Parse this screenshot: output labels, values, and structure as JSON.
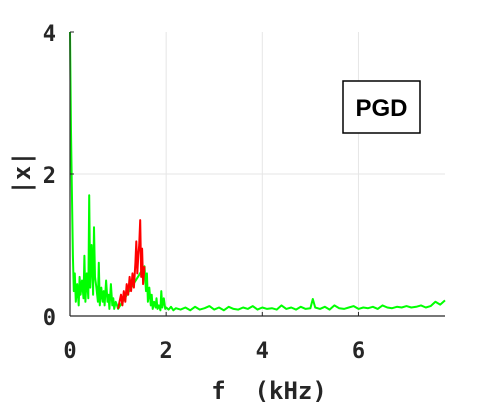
{
  "chart_data": {
    "type": "line",
    "title": "",
    "xlabel": "f  (kHz)",
    "ylabel": "|x|",
    "xlim": [
      0,
      7.8
    ],
    "ylim": [
      0,
      4
    ],
    "xticks": [
      0,
      2,
      4,
      6
    ],
    "yticks": [
      0,
      2,
      4
    ],
    "xtick_labels": [
      "0",
      "2",
      "4",
      "6"
    ],
    "ytick_labels": [
      "0",
      "2",
      "4"
    ],
    "grid": true,
    "annotation": "PGD",
    "annotation_placement": "top-right",
    "colors": {
      "spectrum": "#00ff00",
      "highlight": "#ff0000",
      "axis": "#262626",
      "grid": "#e6e6e6"
    },
    "series": [
      {
        "color": "#00ff00",
        "x": [
          0.0,
          0.02,
          0.04,
          0.06,
          0.08,
          0.1,
          0.12,
          0.15,
          0.18,
          0.2,
          0.22,
          0.25,
          0.28,
          0.3,
          0.32,
          0.35,
          0.38,
          0.4,
          0.42,
          0.45,
          0.48,
          0.5,
          0.52,
          0.55,
          0.58,
          0.6,
          0.62,
          0.65,
          0.68,
          0.7,
          0.72,
          0.75,
          0.78,
          0.8,
          0.82,
          0.85,
          0.88,
          0.9,
          0.92,
          0.95,
          0.98,
          1.0,
          1.55,
          1.58,
          1.6,
          1.62,
          1.65,
          1.68,
          1.7,
          1.72,
          1.75,
          1.78,
          1.8,
          1.82,
          1.85,
          1.88,
          1.9,
          1.92,
          1.95,
          1.98,
          2.0,
          2.05,
          2.1,
          2.15,
          2.2,
          2.3,
          2.4,
          2.5,
          2.6,
          2.7,
          2.8,
          2.9,
          3.0,
          3.1,
          3.2,
          3.3,
          3.4,
          3.5,
          3.6,
          3.7,
          3.8,
          3.9,
          4.0,
          4.1,
          4.2,
          4.3,
          4.4,
          4.5,
          4.6,
          4.7,
          4.8,
          4.9,
          5.0,
          5.05,
          5.1,
          5.2,
          5.3,
          5.4,
          5.5,
          5.6,
          5.7,
          5.8,
          5.9,
          6.0,
          6.1,
          6.2,
          6.3,
          6.4,
          6.5,
          6.6,
          6.7,
          6.8,
          6.9,
          7.0,
          7.1,
          7.2,
          7.3,
          7.4,
          7.5,
          7.6,
          7.7,
          7.8
        ],
        "y": [
          4.0,
          2.6,
          1.75,
          0.85,
          0.35,
          0.6,
          0.2,
          0.45,
          0.15,
          0.55,
          0.3,
          0.5,
          0.25,
          0.85,
          0.2,
          0.6,
          0.25,
          1.7,
          0.4,
          1.0,
          0.3,
          1.25,
          0.55,
          0.4,
          0.2,
          0.75,
          0.15,
          0.4,
          0.2,
          0.35,
          0.15,
          0.5,
          0.2,
          0.3,
          0.1,
          0.45,
          0.15,
          0.25,
          0.1,
          0.2,
          0.15,
          0.1,
          0.7,
          0.35,
          0.6,
          0.2,
          0.4,
          0.15,
          0.3,
          0.1,
          0.2,
          0.12,
          0.25,
          0.1,
          0.15,
          0.08,
          0.35,
          0.12,
          0.25,
          0.1,
          0.12,
          0.09,
          0.13,
          0.08,
          0.11,
          0.09,
          0.12,
          0.08,
          0.13,
          0.09,
          0.11,
          0.14,
          0.09,
          0.12,
          0.08,
          0.13,
          0.1,
          0.09,
          0.12,
          0.1,
          0.14,
          0.09,
          0.12,
          0.1,
          0.11,
          0.09,
          0.15,
          0.1,
          0.12,
          0.09,
          0.13,
          0.1,
          0.11,
          0.24,
          0.12,
          0.1,
          0.13,
          0.09,
          0.15,
          0.11,
          0.1,
          0.12,
          0.14,
          0.1,
          0.12,
          0.11,
          0.13,
          0.1,
          0.15,
          0.12,
          0.11,
          0.13,
          0.12,
          0.14,
          0.12,
          0.13,
          0.15,
          0.12,
          0.14,
          0.2,
          0.16,
          0.22
        ]
      },
      {
        "color": "#ff0000",
        "x": [
          1.0,
          1.03,
          1.06,
          1.09,
          1.12,
          1.15,
          1.18,
          1.21,
          1.24,
          1.27,
          1.3,
          1.33,
          1.36,
          1.38,
          1.4,
          1.42,
          1.44,
          1.46,
          1.48,
          1.5,
          1.52,
          1.55
        ],
        "y": [
          0.1,
          0.2,
          0.3,
          0.15,
          0.35,
          0.2,
          0.45,
          0.3,
          0.55,
          0.35,
          0.6,
          0.4,
          0.75,
          1.05,
          0.6,
          0.85,
          1.0,
          1.35,
          0.55,
          0.95,
          0.45,
          0.7
        ]
      }
    ]
  }
}
